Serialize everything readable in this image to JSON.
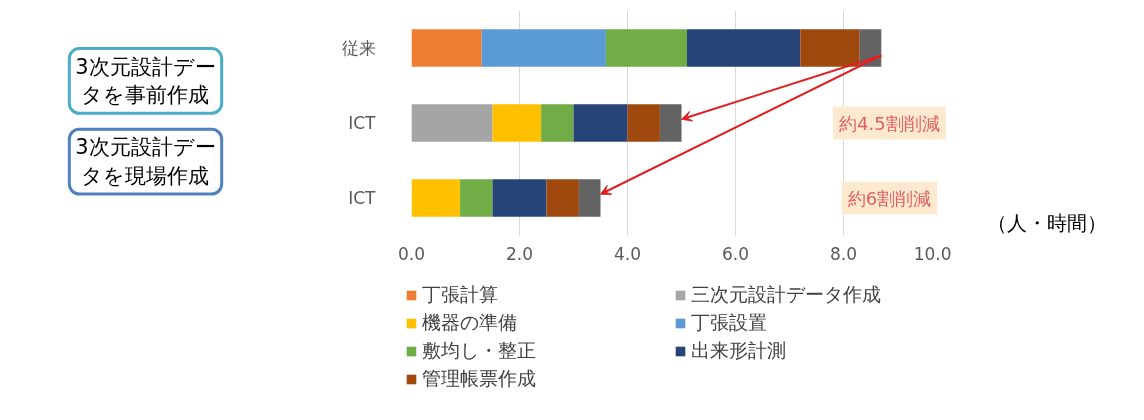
{
  "chart_data": {
    "type": "bar",
    "orientation": "horizontal",
    "stacked": true,
    "categories": [
      "従来",
      "ICT",
      "ICT"
    ],
    "series": [
      {
        "name": "丁張計算",
        "color": "#ed7d31",
        "values": [
          1.3,
          null,
          null
        ]
      },
      {
        "name": "三次元設計データ作成",
        "color": "#a5a5a5",
        "values": [
          null,
          1.5,
          null
        ]
      },
      {
        "name": "機器の準備",
        "color": "#ffc000",
        "values": [
          null,
          0.9,
          0.9
        ]
      },
      {
        "name": "丁張設置",
        "color": "#5b9bd5",
        "values": [
          2.3,
          null,
          null
        ]
      },
      {
        "name": "敷均し・整正",
        "color": "#70ad47",
        "values": [
          1.5,
          0.6,
          0.6
        ]
      },
      {
        "name": "出来形計測",
        "color": "#264478",
        "values": [
          2.1,
          1.0,
          1.0
        ]
      },
      {
        "name": "管理帳票作成",
        "color": "#9e480e",
        "values": [
          1.1,
          0.6,
          0.6
        ]
      },
      {
        "color": "#636363",
        "values": [
          0.4,
          0.4,
          0.4
        ]
      }
    ],
    "xlabel": "（人・時間）",
    "xlim": [
      0,
      10
    ],
    "xticks": [
      {
        "value": 0,
        "label": "0.0"
      },
      {
        "value": 2,
        "label": "2.0"
      },
      {
        "value": 4,
        "label": "4.0"
      },
      {
        "value": 6,
        "label": "6.0"
      },
      {
        "value": 8,
        "label": "8.0"
      },
      {
        "value": 10,
        "label": "10.0"
      }
    ],
    "grid": "x",
    "legend": "bottom",
    "annotations": [
      "3次元設計データを事前作成",
      "3次元設計データを現場作成",
      "約4.5割削減",
      "約6割削減"
    ]
  }
}
